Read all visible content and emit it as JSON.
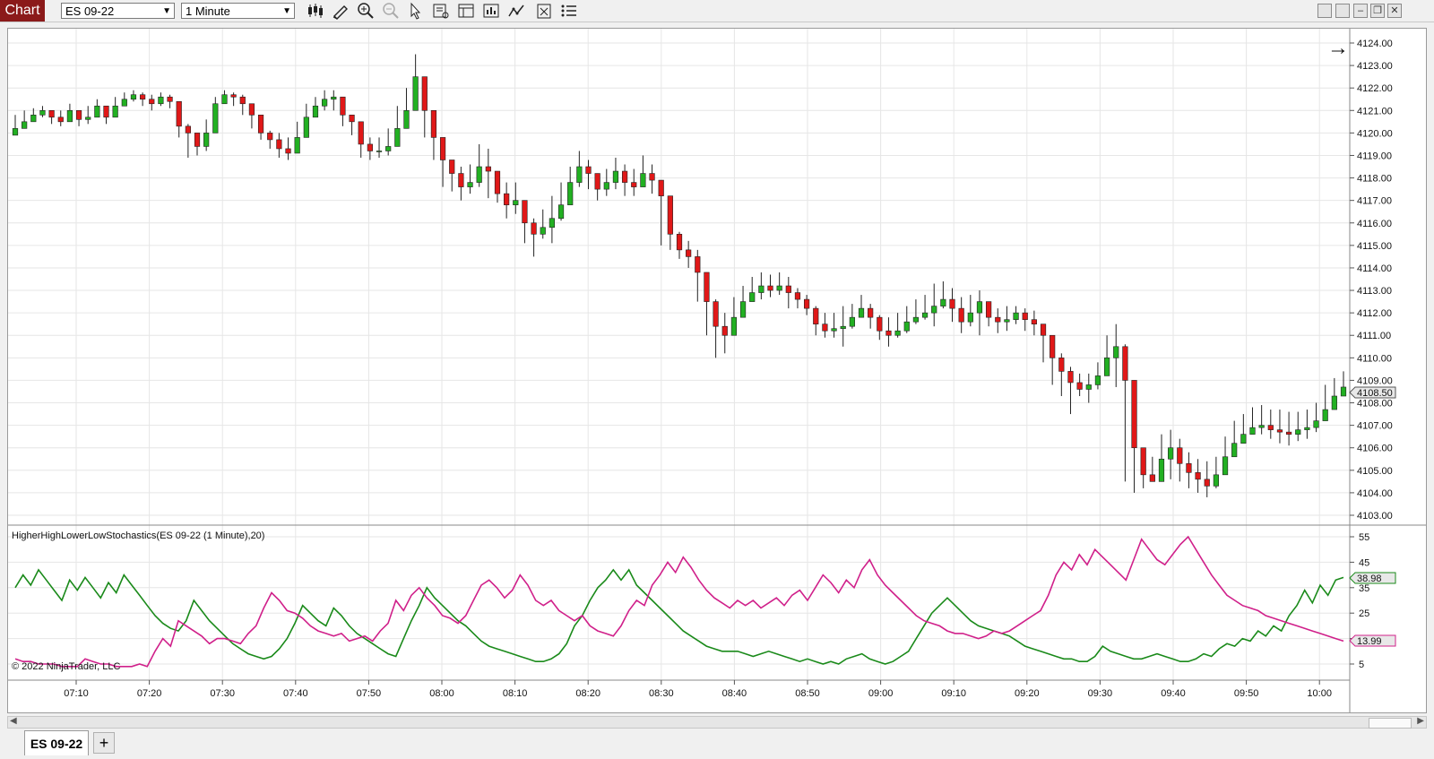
{
  "toolbar": {
    "chart_label": "Chart",
    "instrument": "ES 09-22",
    "interval": "1 Minute",
    "icons": [
      "candlestick-icon",
      "pencil-icon",
      "zoom-in-icon",
      "zoom-out-icon",
      "pointer-icon",
      "data-box-icon",
      "properties-icon",
      "strategies-icon",
      "indicators-icon",
      "templates-icon",
      "list-icon"
    ],
    "window_icons": [
      "minimize-icon",
      "restore-icon",
      "maximize-icon",
      "close-icon"
    ]
  },
  "price_pane": {
    "last_price": "4108.50",
    "arrow": "→"
  },
  "indicator_pane": {
    "label": "HigherHighLowerLowStochastics(ES 09-22 (1 Minute),20)",
    "green_value": "38.98",
    "magenta_value": "13.99",
    "copyright": "© 2022 NinjaTrader, LLC"
  },
  "tabs": {
    "instrument_tab": "ES 09-22",
    "add_tab": "+"
  },
  "colors": {
    "up_candle": "#22b022",
    "down_candle": "#e01818",
    "green_line": "#1a8a1a",
    "magenta_line": "#d0208a",
    "grid": "#e6e6e6"
  },
  "chart_data": [
    {
      "type": "candlestick",
      "ylim": [
        4103,
        4124
      ],
      "y_ticks": [
        "4124.00",
        "4123.00",
        "4122.00",
        "4121.00",
        "4120.00",
        "4119.00",
        "4118.00",
        "4117.00",
        "4116.00",
        "4115.00",
        "4114.00",
        "4113.00",
        "4112.00",
        "4111.00",
        "4110.00",
        "4109.00",
        "4108.00",
        "4107.00",
        "4106.00",
        "4105.00",
        "4104.00",
        "4103.00"
      ],
      "x_ticks": [
        "07:10",
        "07:20",
        "07:30",
        "07:40",
        "07:50",
        "08:00",
        "08:10",
        "08:20",
        "08:30",
        "08:40",
        "08:50",
        "09:00",
        "09:10",
        "09:20",
        "09:30",
        "09:40",
        "09:50",
        "10:00"
      ],
      "anchors": [
        [
          4120.2,
          4120.5,
          4120.8,
          4121.0,
          4120.7,
          4120.5,
          4121.0,
          4120.6,
          4120.7,
          4121.2,
          4120.7,
          4121.2,
          4121.5,
          4121.7,
          4121.5,
          4121.3,
          4121.6,
          4121.4,
          4120.3,
          4120.0,
          4119.4,
          4120.0,
          4121.3,
          4121.7,
          4121.6,
          4121.3,
          4120.8,
          4120.0,
          4119.7,
          4119.3,
          4119.1,
          4119.8,
          4120.7,
          4121.2,
          4121.5,
          4121.6,
          4120.8,
          4120.5,
          4119.5,
          4119.2,
          4119.2,
          4119.4,
          4120.2,
          4121.0,
          4122.5,
          4121.0,
          4119.8,
          4118.8,
          4118.2,
          4117.6,
          4117.8,
          4118.5,
          4118.3,
          4117.3,
          4116.8,
          4117.0,
          4116.0,
          4115.5,
          4115.8,
          4116.2,
          4116.8,
          4117.8,
          4118.5,
          4118.2,
          4117.5,
          4117.8,
          4118.3,
          4117.8,
          4117.6,
          4118.2,
          4117.9,
          4117.2,
          4115.5,
          4114.8,
          4114.5,
          4113.8,
          4112.5,
          4111.4,
          4111.0,
          4111.8,
          4112.5,
          4112.9,
          4113.2,
          4113.0,
          4113.2,
          4112.9,
          4112.6,
          4112.2,
          4111.5,
          4111.2,
          4111.3,
          4111.4,
          4111.8,
          4112.2,
          4111.8,
          4111.2,
          4111.0,
          4111.2,
          4111.6,
          4111.8,
          4112.0,
          4112.3,
          4112.6,
          4112.2,
          4111.6,
          4112.0,
          4112.5,
          4111.8,
          4111.6,
          4111.7,
          4112.0,
          4111.7,
          4111.5,
          4111.0,
          4110.0,
          4109.4,
          4108.9,
          4108.6,
          4108.8,
          4109.2,
          4110.0,
          4110.5,
          4109.0,
          4106.0,
          4104.8,
          4104.5,
          4105.5,
          4106.0,
          4105.3,
          4104.9,
          4104.6,
          4104.3,
          4104.8,
          4105.6,
          4106.2,
          4106.6,
          4106.9,
          4107.0,
          4106.8,
          4106.7,
          4106.6,
          4106.8,
          4106.9,
          4107.2,
          4107.7,
          4108.3,
          4108.7
        ],
        [
          4120.8,
          4121.0,
          4121.1,
          4121.2,
          4121.0,
          4121.0,
          4121.3,
          4121.0,
          4121.2,
          4121.5,
          4121.2,
          4121.6,
          4121.8,
          4121.9,
          4121.8,
          4121.7,
          4121.8,
          4121.7,
          4120.8,
          4120.4,
          4120.0,
          4120.6,
          4121.6,
          4121.9,
          4121.8,
          4121.7,
          4121.2,
          4120.5,
          4120.1,
          4120.0,
          4119.8,
          4120.5,
          4121.3,
          4121.6,
          4121.9,
          4121.9,
          4121.3,
          4120.8,
          4120.0,
          4119.8,
          4119.8,
          4120.2,
          4121.2,
          4122.0,
          4123.5,
          4122.0,
          4120.3,
          4119.2,
          4118.7,
          4118.5,
          4118.6,
          4119.5,
          4119.3,
          4118.3,
          4117.8,
          4117.8,
          4116.7,
          4116.2,
          4116.6,
          4117.2,
          4117.8,
          4118.5,
          4119.2,
          4118.8,
          4118.2,
          4118.4,
          4118.9,
          4118.6,
          4118.4,
          4119.0,
          4118.6,
          4117.6,
          4116.5,
          4115.6,
          4115.2,
          4114.8,
          4113.5,
          4112.6,
          4112.0,
          4112.7,
          4113.2,
          4113.6,
          4113.8,
          4113.7,
          4113.8,
          4113.6,
          4113.1,
          4112.8,
          4112.3,
          4112.0,
          4112.0,
          4112.3,
          4112.4,
          4112.8,
          4112.4,
          4111.9,
          4111.8,
          4112.0,
          4112.3,
          4112.6,
          4112.8,
          4113.3,
          4113.4,
          4113.1,
          4112.7,
          4112.8,
          4113.0,
          4112.4,
          4112.2,
          4112.3,
          4112.3,
          4112.2,
          4112.1,
          4111.5,
          4110.6,
          4110.2,
          4109.6,
          4109.3,
          4109.3,
          4109.8,
          4111.0,
          4111.5,
          4110.6,
          4107.6,
          4105.9,
          4105.6,
          4106.6,
          4106.8,
          4106.4,
          4105.8,
          4105.5,
          4105.4,
          4105.6,
          4106.5,
          4107.2,
          4107.5,
          4107.8,
          4107.9,
          4107.7,
          4107.7,
          4107.6,
          4107.6,
          4107.7,
          4108.0,
          4108.8,
          4109.1,
          4109.4
        ],
        [
          4119.9,
          4120.2,
          4120.5,
          4120.7,
          4120.4,
          4120.3,
          4120.6,
          4120.3,
          4120.4,
          4120.8,
          4120.4,
          4120.9,
          4121.2,
          4121.4,
          4121.2,
          4121.0,
          4121.2,
          4121.1,
          4119.8,
          4118.9,
          4119.0,
          4119.2,
          4120.9,
          4121.3,
          4121.2,
          4120.8,
          4120.2,
          4119.7,
          4119.3,
          4118.9,
          4118.8,
          4119.5,
          4120.5,
          4120.8,
          4121.0,
          4121.0,
          4120.3,
          4119.9,
          4118.9,
          4118.8,
          4118.9,
          4119.0,
          4119.8,
          4120.6,
          4121.8,
          4119.8,
          4118.8,
          4117.6,
          4117.4,
          4117.0,
          4117.3,
          4117.6,
          4117.1,
          4116.9,
          4116.2,
          4116.4,
          4115.1,
          4114.5,
          4115.3,
          4115.1,
          4116.1,
          4117.4,
          4117.6,
          4117.5,
          4117.0,
          4117.2,
          4117.5,
          4117.2,
          4117.2,
          4117.7,
          4117.3,
          4115.0,
          4114.8,
          4114.4,
          4114.0,
          4112.5,
          4111.0,
          4110.0,
          4110.2,
          4111.0,
          4112.0,
          4112.5,
          4112.6,
          4112.7,
          4112.8,
          4112.2,
          4112.2,
          4111.9,
          4111.0,
          4110.9,
          4110.9,
          4110.5,
          4111.3,
          4111.8,
          4111.3,
          4110.8,
          4110.5,
          4110.9,
          4111.1,
          4111.5,
          4111.7,
          4111.4,
          4112.2,
          4111.6,
          4111.1,
          4111.4,
          4111.0,
          4111.4,
          4111.1,
          4111.2,
          4111.5,
          4111.2,
          4111.0,
          4109.8,
          4108.8,
          4108.3,
          4107.5,
          4108.3,
          4108.0,
          4108.6,
          4109.5,
          4108.7,
          4104.5,
          4104.0,
          4104.2,
          4104.5,
          4105.0,
          4104.6,
          4104.5,
          4104.2,
          4104.0,
          4103.8,
          4104.2,
          4105.2,
          4105.7,
          4106.5,
          4106.7,
          4106.6,
          4106.4,
          4106.2,
          4106.1,
          4106.3,
          4106.4,
          4106.7,
          4107.4,
          4107.8,
          4108.3
        ]
      ],
      "last": 4108.5,
      "ohlc_note": "anchors: [close series, high series, low series]; each bar opens at previous close"
    },
    {
      "type": "line",
      "ylim": [
        0,
        60
      ],
      "y_ticks": [
        "55",
        "45",
        "35",
        "25",
        "15",
        "5"
      ],
      "series": [
        {
          "color": "#1a8a1a",
          "values": [
            35,
            40,
            36,
            42,
            38,
            34,
            30,
            38,
            34,
            39,
            35,
            31,
            37,
            33,
            40,
            36,
            32,
            28,
            24,
            21,
            19,
            18,
            22,
            30,
            26,
            22,
            19,
            16,
            13,
            11,
            9,
            8,
            7,
            8,
            11,
            15,
            21,
            28,
            25,
            22,
            20,
            27,
            24,
            20,
            17,
            15,
            13,
            11,
            9,
            8,
            15,
            22,
            28,
            35,
            31,
            28,
            25,
            22,
            20,
            17,
            14,
            12,
            11,
            10,
            9,
            8,
            7,
            6,
            6,
            7,
            9,
            13,
            20,
            24,
            30,
            35,
            38,
            42,
            38,
            42,
            36,
            33,
            30,
            27,
            24,
            21,
            18,
            16,
            14,
            12,
            11,
            10,
            10,
            10,
            9,
            8,
            9,
            10,
            9,
            8,
            7,
            6,
            7,
            6,
            5,
            6,
            5,
            7,
            8,
            9,
            7,
            6,
            5,
            6,
            8,
            10,
            15,
            20,
            25,
            28,
            31,
            28,
            25,
            22,
            20,
            19,
            18,
            17,
            16,
            14,
            12,
            11,
            10,
            9,
            8,
            7,
            7,
            6,
            6,
            8,
            12,
            10,
            9,
            8,
            7,
            7,
            8,
            9,
            8,
            7,
            6,
            6,
            7,
            9,
            8,
            11,
            13,
            12,
            15,
            14,
            18,
            16,
            20,
            18,
            24,
            28,
            34,
            29,
            36,
            32,
            38,
            39
          ]
        },
        {
          "color": "#d0208a",
          "values": [
            7,
            6,
            6,
            5,
            5,
            5,
            4,
            4,
            4,
            7,
            6,
            5,
            5,
            4,
            4,
            4,
            5,
            4,
            10,
            15,
            12,
            22,
            20,
            18,
            16,
            13,
            15,
            15,
            14,
            13,
            17,
            20,
            27,
            33,
            30,
            26,
            25,
            23,
            20,
            18,
            17,
            16,
            17,
            14,
            15,
            16,
            14,
            18,
            21,
            30,
            26,
            32,
            35,
            31,
            28,
            24,
            23,
            21,
            24,
            30,
            36,
            38,
            35,
            31,
            34,
            40,
            36,
            30,
            28,
            30,
            26,
            24,
            22,
            24,
            20,
            18,
            17,
            16,
            20,
            26,
            30,
            28,
            36,
            40,
            45,
            41,
            47,
            43,
            38,
            34,
            31,
            29,
            27,
            30,
            28,
            30,
            27,
            29,
            31,
            28,
            32,
            34,
            30,
            35,
            40,
            37,
            33,
            38,
            35,
            42,
            46,
            40,
            36,
            33,
            30,
            27,
            24,
            22,
            21,
            20,
            18,
            17,
            17,
            16,
            15,
            16,
            18,
            17,
            18,
            20,
            22,
            24,
            26,
            32,
            40,
            45,
            42,
            48,
            44,
            50,
            47,
            44,
            41,
            38,
            46,
            54,
            50,
            46,
            44,
            48,
            52,
            55,
            50,
            45,
            40,
            36,
            32,
            30,
            28,
            27,
            26,
            24,
            23,
            22,
            21,
            20,
            19,
            18,
            17,
            16,
            15,
            14
          ]
        }
      ]
    }
  ]
}
